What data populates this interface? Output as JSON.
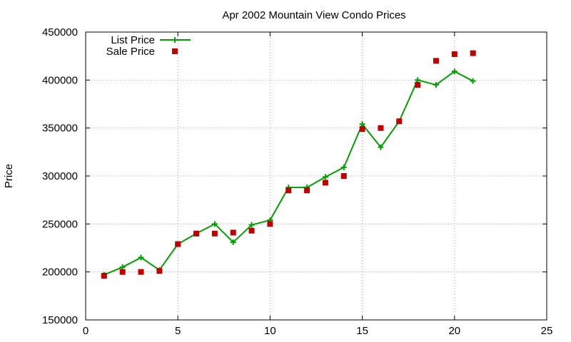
{
  "chart_data": {
    "type": "line",
    "title": "Apr 2002 Mountain View Condo Prices",
    "xlabel": "",
    "ylabel": "Price",
    "xlim": [
      0,
      25
    ],
    "ylim": [
      150000,
      450000
    ],
    "xticks": [
      0,
      5,
      10,
      15,
      20,
      25
    ],
    "yticks": [
      150000,
      200000,
      250000,
      300000,
      350000,
      400000,
      450000
    ],
    "grid": true,
    "legend_position": "top-left",
    "series": [
      {
        "name": "List Price",
        "style": "line-plus",
        "color": "#00a000",
        "x": [
          1,
          2,
          3,
          4,
          5,
          6,
          7,
          8,
          9,
          10,
          11,
          12,
          13,
          14,
          15,
          16,
          17,
          18,
          19,
          20,
          21
        ],
        "y": [
          197000,
          205000,
          215000,
          202000,
          229000,
          240000,
          250000,
          231000,
          249000,
          254000,
          288000,
          288000,
          299000,
          309000,
          354000,
          330000,
          357000,
          400000,
          395000,
          409000,
          399000
        ]
      },
      {
        "name": "Sale Price",
        "style": "square",
        "color": "#c00000",
        "x": [
          1,
          2,
          3,
          4,
          5,
          6,
          7,
          8,
          9,
          10,
          11,
          12,
          13,
          14,
          15,
          16,
          17,
          18,
          19,
          20,
          21
        ],
        "y": [
          196000,
          200000,
          200000,
          201000,
          229000,
          240000,
          240000,
          241000,
          243000,
          250000,
          285000,
          285000,
          293000,
          300000,
          349000,
          350000,
          357000,
          395000,
          420000,
          427000,
          428000
        ]
      }
    ]
  }
}
